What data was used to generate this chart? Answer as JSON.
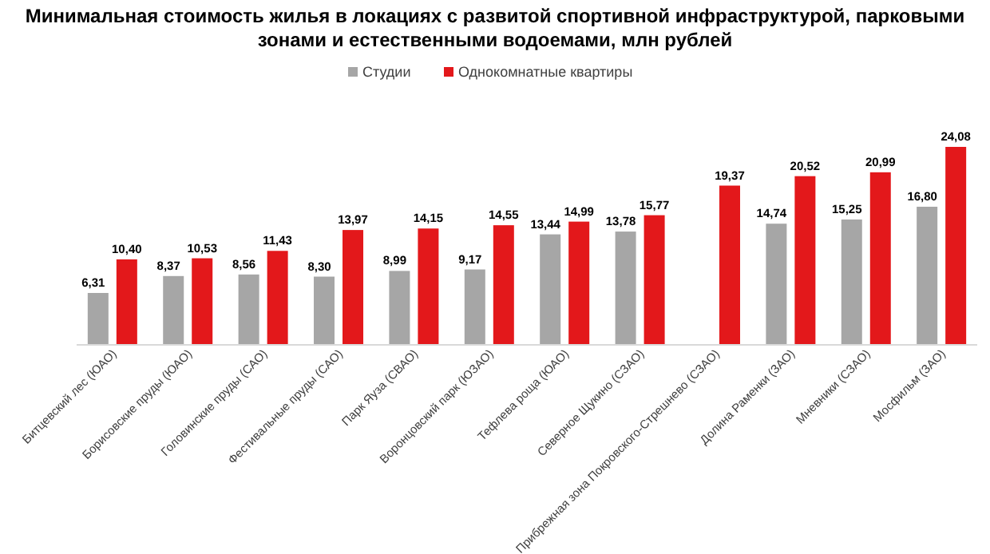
{
  "chart_data": {
    "type": "bar",
    "title": "Минимальная стоимость жилья в локациях с развитой спортивной инфраструктурой, парковыми зонами и естественными водоемами, млн рублей",
    "categories": [
      "Битцевский лес (ЮАО)",
      "Борисовские пруды (ЮАО)",
      "Головинские пруды (САО)",
      "Фестивальные пруды (САО)",
      "Парк Яуза (СВАО)",
      "Воронцовский парк (ЮЗАО)",
      "Тефлева роща (ЮАО)",
      "Северное Щукино (СЗАО)",
      "Прибрежная зона Покровского-Стрешнево (СЗАО)",
      "Долина Раменки (ЗАО)",
      "Мневники (СЗАО)",
      "Мосфильм (ЗАО)"
    ],
    "series": [
      {
        "name": "Студии",
        "color": "#a6a6a6",
        "values": [
          6.31,
          8.37,
          8.56,
          8.3,
          8.99,
          9.17,
          13.44,
          13.78,
          null,
          14.74,
          15.25,
          16.8
        ],
        "value_labels": [
          "6,31",
          "8,37",
          "8,56",
          "8,30",
          "8,99",
          "9,17",
          "13,44",
          "13,78",
          null,
          "14,74",
          "15,25",
          "16,80"
        ]
      },
      {
        "name": "Однокомнатные квартиры",
        "color": "#e3181b",
        "values": [
          10.4,
          10.53,
          11.43,
          13.97,
          14.15,
          14.55,
          14.99,
          15.77,
          19.37,
          20.52,
          20.99,
          24.08
        ],
        "value_labels": [
          "10,40",
          "10,53",
          "11,43",
          "13,97",
          "14,15",
          "14,55",
          "14,99",
          "15,77",
          "19,37",
          "20,52",
          "20,99",
          "24,08"
        ]
      }
    ],
    "legend": "top"
  }
}
